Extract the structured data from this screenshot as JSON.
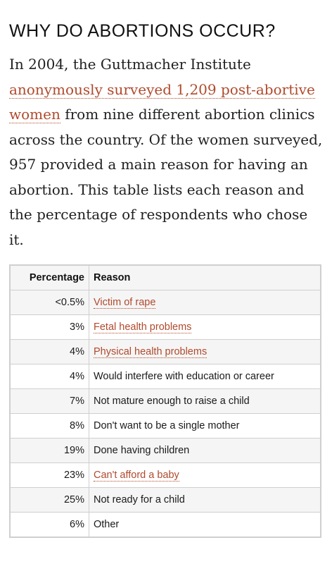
{
  "article": {
    "heading": "WHY DO ABORTIONS OCCUR?",
    "intro": {
      "text_before": "In 2004, the Guttmacher Institute ",
      "link_text": "anonymously surveyed 1,209 post-abortive women",
      "text_after": " from nine different abortion clinics across the country. Of the women surveyed, 957 provided a main reason for having an abortion. This table lists each reason and the percentage of respondents who chose it."
    },
    "link_color": "#b04a2c"
  },
  "table": {
    "headers": {
      "percentage": "Percentage",
      "reason": "Reason"
    },
    "rows": [
      {
        "percentage": "<0.5%",
        "reason": "Victim of rape",
        "linked": true
      },
      {
        "percentage": "3%",
        "reason": "Fetal health problems",
        "linked": true
      },
      {
        "percentage": "4%",
        "reason": "Physical health problems",
        "linked": true
      },
      {
        "percentage": "4%",
        "reason": "Would interfere with education or career",
        "linked": false
      },
      {
        "percentage": "7%",
        "reason": "Not mature enough to raise a child",
        "linked": false
      },
      {
        "percentage": "8%",
        "reason": "Don't want to be a single mother",
        "linked": false
      },
      {
        "percentage": "19%",
        "reason": "Done having children",
        "linked": false
      },
      {
        "percentage": "23%",
        "reason": "Can't afford a baby",
        "linked": true
      },
      {
        "percentage": "25%",
        "reason": "Not ready for a child",
        "linked": false
      },
      {
        "percentage": "6%",
        "reason": "Other",
        "linked": false
      }
    ]
  }
}
